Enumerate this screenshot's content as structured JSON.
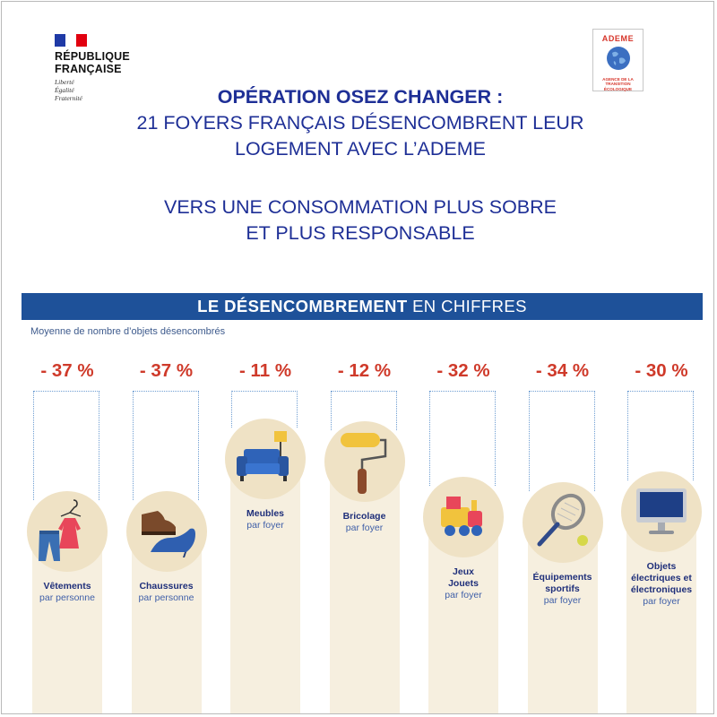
{
  "header": {
    "republique_line1": "RÉPUBLIQUE",
    "republique_line2": "FRANÇAISE",
    "motto": [
      "Liberté",
      "Égalité",
      "Fraternité"
    ],
    "ademe_name": "ADEME",
    "ademe_tagline": [
      "AGENCE DE LA",
      "TRANSITION",
      "ÉCOLOGIQUE"
    ]
  },
  "title": {
    "line1": "OPÉRATION OSEZ CHANGER :",
    "line2": "21 FOYERS FRANÇAIS DÉSENCOMBRENT LEUR",
    "line3": "LOGEMENT AVEC L’ADEME",
    "line4": "VERS UNE CONSOMMATION PLUS SOBRE",
    "line5": "ET PLUS RESPONSABLE"
  },
  "band": {
    "bold": "LE DÉSENCOMBREMENT",
    "rest": " EN CHIFFRES"
  },
  "colors": {
    "accent_blue": "#1e5199",
    "title_blue": "#1e2f96",
    "percent_red": "#cf3a2a",
    "bar_cream": "#f6efdf",
    "circle_beige": "#efe2c5",
    "dotted_blue": "#6f9ed2"
  },
  "chart_data": {
    "type": "bar",
    "title": "LE DÉSENCOMBREMENT EN CHIFFRES",
    "ylabel": "Moyenne de nombre d’objets désencombrés",
    "categories": [
      "Vêtements",
      "Chaussures",
      "Meubles",
      "Bricolage",
      "Jeux Jouets",
      "Équipements sportifs",
      "Objets électriques et électroniques"
    ],
    "values": [
      -37,
      -37,
      -11,
      -12,
      -32,
      -34,
      -30
    ],
    "value_labels": [
      "- 37 %",
      "- 37 %",
      "- 11 %",
      "- 12 %",
      "- 32 %",
      "- 34 %",
      "- 30 %"
    ],
    "items": [
      {
        "name_lines": [
          "Vêtements"
        ],
        "unit": "par personne",
        "icon": "clothes-icon",
        "label": "- 37 %"
      },
      {
        "name_lines": [
          "Chaussures"
        ],
        "unit": "par personne",
        "icon": "shoes-icon",
        "label": "- 37 %"
      },
      {
        "name_lines": [
          "Meubles"
        ],
        "unit": "par foyer",
        "icon": "sofa-icon",
        "label": "- 11 %"
      },
      {
        "name_lines": [
          "Bricolage"
        ],
        "unit": "par foyer",
        "icon": "paint-roller-icon",
        "label": "- 12 %"
      },
      {
        "name_lines": [
          "Jeux",
          "Jouets"
        ],
        "unit": "par foyer",
        "icon": "toy-train-icon",
        "label": "- 32 %"
      },
      {
        "name_lines": [
          "Équipements",
          "sportifs"
        ],
        "unit": "par foyer",
        "icon": "tennis-racket-icon",
        "label": "- 34 %"
      },
      {
        "name_lines": [
          "Objets",
          "électriques et",
          "électroniques"
        ],
        "unit": "par foyer",
        "icon": "computer-icon",
        "label": "- 30 %"
      }
    ]
  }
}
